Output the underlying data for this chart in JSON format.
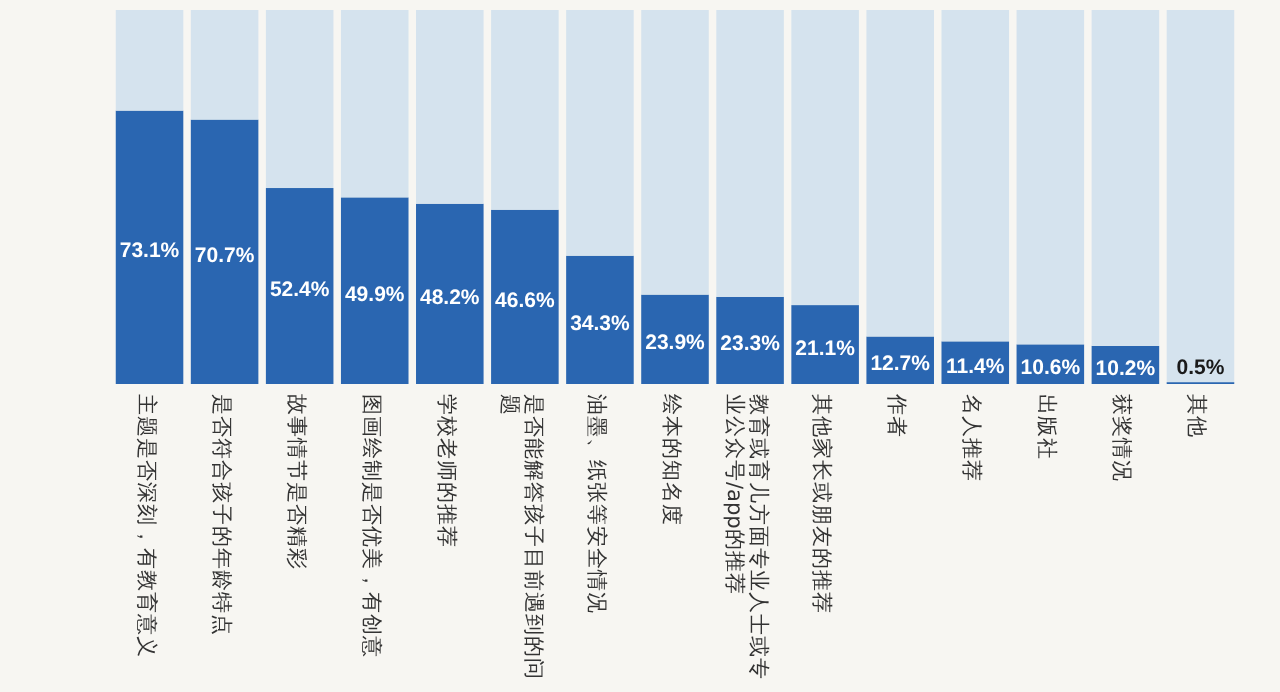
{
  "chart_data": {
    "type": "bar",
    "stacked": true,
    "ylim": [
      0,
      100
    ],
    "categories": [
      "主题是否深刻，有教育意义",
      "是否符合孩子的年龄特点",
      "故事情节是否精彩",
      "图画绘制是否优美，有创意",
      "学校老师的推荐",
      "是否能解答孩子目前遇到的问题",
      "油墨、纸张等安全情况",
      "绘本的知名度",
      "教育或育儿方面专业人士或专业公众号/app的推荐",
      "其他家长或朋友的推荐",
      "作者",
      "名人推荐",
      "出版社",
      "获奖情况",
      "其他"
    ],
    "series": [
      {
        "color": "#2a66b1",
        "values": [
          73.1,
          70.7,
          52.4,
          49.9,
          48.2,
          46.6,
          34.3,
          23.9,
          23.3,
          21.1,
          12.7,
          11.4,
          10.6,
          10.2,
          0.5
        ],
        "value_labels": [
          "73.1%",
          "70.7%",
          "52.4%",
          "49.9%",
          "48.2%",
          "46.6%",
          "34.3%",
          "23.9%",
          "23.3%",
          "21.1%",
          "12.7%",
          "11.4%",
          "10.6%",
          "10.2%",
          "0.5%"
        ]
      },
      {
        "color": "#d5e3ee",
        "values": [
          26.9,
          29.3,
          47.6,
          50.1,
          51.8,
          53.4,
          65.7,
          76.1,
          76.7,
          78.9,
          87.3,
          88.6,
          89.4,
          89.8,
          99.5
        ]
      }
    ]
  }
}
